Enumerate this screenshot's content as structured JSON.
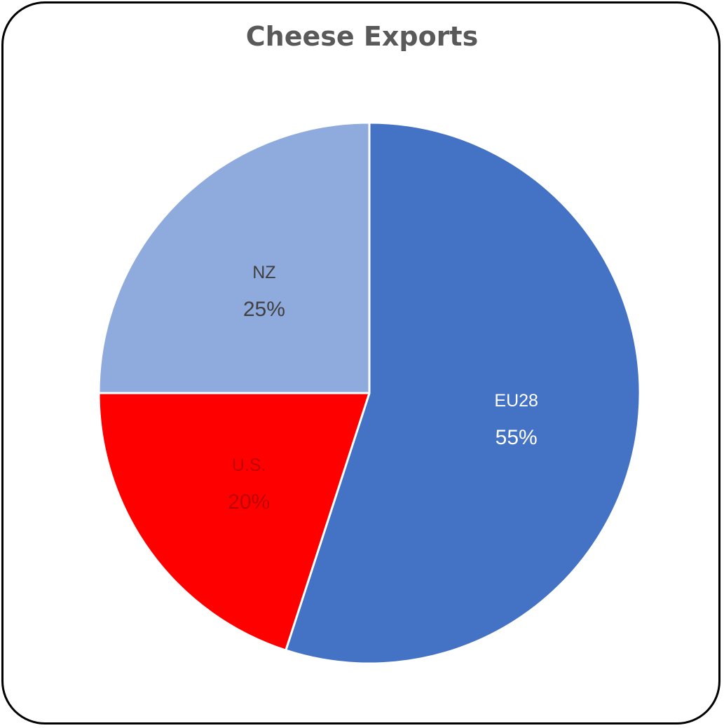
{
  "chart_data": {
    "type": "pie",
    "title": "Cheese Exports",
    "categories": [
      "EU28",
      "U.S.",
      "NZ"
    ],
    "values": [
      55,
      20,
      25
    ],
    "value_labels": [
      "55%",
      "20%",
      "25%"
    ],
    "colors": [
      "#4472C4",
      "#FF0000",
      "#8FAADC"
    ],
    "label_colors": [
      "#FFFFFF",
      "#C00000",
      "#404040"
    ],
    "start_angle_deg": 0,
    "direction": "clockwise",
    "legend": "none",
    "data_labels": "inside"
  }
}
